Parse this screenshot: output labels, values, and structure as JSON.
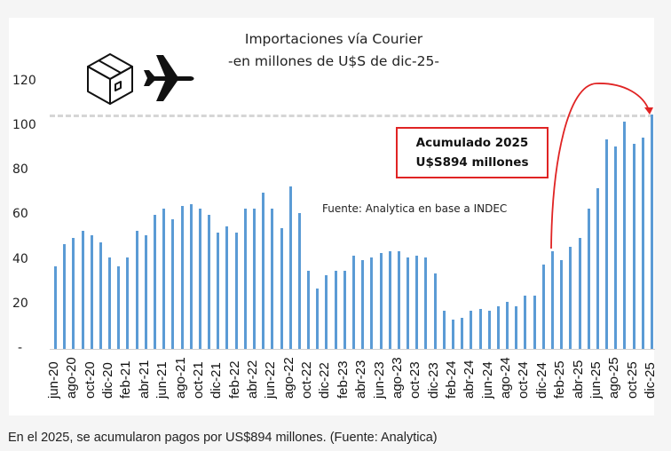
{
  "chart_data": {
    "type": "bar",
    "title": "Importaciones vía Courier",
    "subtitle": "-en millones de U$S de dic-25-",
    "xlabel": "",
    "ylabel": "",
    "ylim": [
      0,
      120
    ],
    "yticks": [
      "-",
      "20",
      "40",
      "60",
      "80",
      "100",
      "120"
    ],
    "grid": false,
    "legend": null,
    "categories": [
      "jun-20",
      "jul-20",
      "ago-20",
      "sep-20",
      "oct-20",
      "nov-20",
      "dic-20",
      "ene-21",
      "feb-21",
      "mar-21",
      "abr-21",
      "may-21",
      "jun-21",
      "jul-21",
      "ago-21",
      "sep-21",
      "oct-21",
      "nov-21",
      "dic-21",
      "ene-22",
      "feb-22",
      "mar-22",
      "abr-22",
      "may-22",
      "jun-22",
      "jul-22",
      "ago-22",
      "sep-22",
      "oct-22",
      "nov-22",
      "dic-22",
      "ene-23",
      "feb-23",
      "mar-23",
      "abr-23",
      "may-23",
      "jun-23",
      "jul-23",
      "ago-23",
      "sep-23",
      "oct-23",
      "nov-23",
      "dic-23",
      "ene-24",
      "feb-24",
      "mar-24",
      "abr-24",
      "may-24",
      "jun-24",
      "jul-24",
      "ago-24",
      "sep-24",
      "oct-24",
      "nov-24",
      "dic-24",
      "ene-25",
      "feb-25",
      "mar-25",
      "abr-25",
      "may-25",
      "jun-25",
      "jul-25",
      "ago-25",
      "sep-25",
      "oct-25",
      "nov-25",
      "dic-25"
    ],
    "visible_tick_labels": [
      "jun-20",
      "ago-20",
      "oct-20",
      "dic-20",
      "feb-21",
      "abr-21",
      "jun-21",
      "ago-21",
      "oct-21",
      "dic-21",
      "feb-22",
      "abr-22",
      "jun-22",
      "ago-22",
      "oct-22",
      "dic-22",
      "feb-23",
      "abr-23",
      "jun-23",
      "ago-23",
      "oct-23",
      "dic-23",
      "feb-24",
      "abr-24",
      "jun-24",
      "ago-24",
      "oct-24",
      "dic-24",
      "feb-25",
      "abr-25",
      "jun-25",
      "ago-25",
      "oct-25",
      "dic-25"
    ],
    "values": [
      37,
      47,
      50,
      53,
      51,
      48,
      41,
      37,
      41,
      53,
      51,
      60,
      63,
      58,
      64,
      65,
      63,
      60,
      52,
      55,
      52,
      63,
      63,
      70,
      63,
      54,
      73,
      61,
      35,
      27,
      33,
      35,
      35,
      42,
      40,
      41,
      43,
      44,
      44,
      41,
      42,
      41,
      34,
      17,
      13,
      14,
      17,
      18,
      17,
      19,
      21,
      19,
      24,
      24,
      38,
      44,
      40,
      46,
      50,
      63,
      72,
      94,
      91,
      102,
      92,
      95,
      105
    ],
    "reference_line": {
      "value": 105,
      "style": "dashed",
      "color": "#d6d6d6"
    },
    "annotations": [
      {
        "text": "Acumulado 2025",
        "line2": "U$S894 millones",
        "boxed": true,
        "border_color": "#e02424"
      },
      {
        "text": "Fuente: Analytica en base a INDEC"
      },
      {
        "type": "curved-arrow",
        "from": "ene-25",
        "to": "dic-25",
        "color": "#e02424"
      }
    ],
    "bar_color": "#5b9bd5"
  },
  "header": {
    "title_line1": "Importaciones vía Courier",
    "title_line2": "-en millones de U$S de dic-25-",
    "icons": [
      "package-box-icon",
      "airplane-icon"
    ]
  },
  "annotation_box": {
    "line1": "Acumulado 2025",
    "line2": "U$S894 millones"
  },
  "source_note": "Fuente: Analytica en base a INDEC",
  "caption": "En el 2025, se acumularon pagos por US$894 millones. (Fuente: Analytica)"
}
